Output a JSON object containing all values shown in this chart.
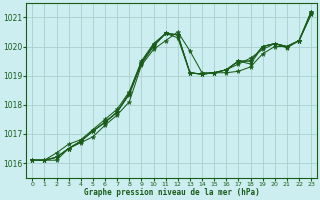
{
  "xlabel": "Graphe pression niveau de la mer (hPa)",
  "xlim": [
    -0.5,
    23.5
  ],
  "ylim": [
    1015.5,
    1021.5
  ],
  "yticks": [
    1016,
    1017,
    1018,
    1019,
    1020,
    1021
  ],
  "xticks": [
    0,
    1,
    2,
    3,
    4,
    5,
    6,
    7,
    8,
    9,
    10,
    11,
    12,
    13,
    14,
    15,
    16,
    17,
    18,
    19,
    20,
    21,
    22,
    23
  ],
  "bg_color": "#cceef0",
  "line_color": "#1a5c1a",
  "grid_color": "#a8d0cc",
  "series": [
    [
      1016.1,
      1016.1,
      1016.1,
      1016.5,
      1016.7,
      1016.9,
      1017.3,
      1017.65,
      1018.1,
      1019.35,
      1019.9,
      1020.2,
      1020.5,
      1019.85,
      1019.1,
      1019.1,
      1019.1,
      1019.15,
      1019.3,
      1019.75,
      1020.0,
      1020.0,
      1020.2,
      1021.1
    ],
    [
      1016.1,
      1016.1,
      1016.35,
      1016.65,
      1016.8,
      1017.15,
      1017.5,
      1017.85,
      1018.45,
      1019.5,
      1020.1,
      1020.45,
      1020.3,
      1019.1,
      1019.05,
      1019.1,
      1019.2,
      1019.4,
      1019.6,
      1019.9,
      1020.1,
      1020.0,
      1020.2,
      1021.1
    ],
    [
      1016.1,
      1016.1,
      1016.2,
      1016.5,
      1016.75,
      1017.1,
      1017.4,
      1017.75,
      1018.35,
      1019.4,
      1020.0,
      1020.45,
      1020.4,
      1019.1,
      1019.05,
      1019.1,
      1019.2,
      1019.5,
      1019.4,
      1020.0,
      1020.1,
      1019.95,
      1020.2,
      1021.2
    ],
    [
      1016.1,
      1016.1,
      1016.2,
      1016.5,
      1016.75,
      1017.1,
      1017.4,
      1017.75,
      1018.4,
      1019.45,
      1020.05,
      1020.45,
      1020.4,
      1019.1,
      1019.05,
      1019.1,
      1019.2,
      1019.5,
      1019.5,
      1020.0,
      1020.1,
      1020.0,
      1020.2,
      1021.15
    ],
    [
      1016.1,
      1016.1,
      1016.2,
      1016.5,
      1016.75,
      1017.1,
      1017.4,
      1017.75,
      1018.4,
      1019.45,
      1020.05,
      1020.45,
      1020.4,
      1019.1,
      1019.05,
      1019.1,
      1019.2,
      1019.5,
      1019.5,
      1020.0,
      1020.1,
      1020.0,
      1020.2,
      1021.2
    ]
  ]
}
